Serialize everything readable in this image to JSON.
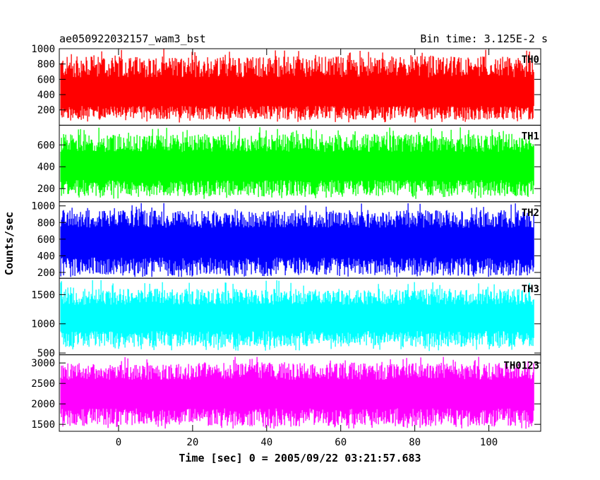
{
  "header": {
    "title": "ae050922032157_wam3_bst",
    "bin_time": "Bin time: 3.125E-2 s"
  },
  "chart_data": {
    "type": "line",
    "xlabel": "Time [sec] 0 = 2005/09/22 03:21:57.683",
    "ylabel": "Counts/sec",
    "xlim": [
      -16,
      114
    ],
    "x_ticks": [
      0,
      20,
      40,
      60,
      80,
      100
    ],
    "x_range_data": [
      -15.6,
      112.3
    ],
    "grid": false,
    "panels": [
      {
        "name": "TH0",
        "color": "#ff0000",
        "ylim": [
          0,
          1000
        ],
        "y_ticks": [
          200,
          400,
          600,
          800,
          1000
        ],
        "baseline": 400,
        "low": 70,
        "high": 900,
        "peak": 1000
      },
      {
        "name": "TH1",
        "color": "#00ff00",
        "ylim": [
          80,
          780
        ],
        "y_ticks": [
          200,
          400,
          600
        ],
        "baseline": 400,
        "low": 130,
        "high": 700,
        "peak": 770
      },
      {
        "name": "TH2",
        "color": "#0000ff",
        "ylim": [
          130,
          1050
        ],
        "y_ticks": [
          200,
          400,
          600,
          800,
          1000
        ],
        "baseline": 560,
        "low": 160,
        "high": 950,
        "peak": 1040
      },
      {
        "name": "TH3",
        "color": "#00ffff",
        "ylim": [
          470,
          1780
        ],
        "y_ticks": [
          500,
          1000,
          1500
        ],
        "baseline": 1100,
        "low": 600,
        "high": 1600,
        "peak": 1750
      },
      {
        "name": "TH0123",
        "color": "#ff00ff",
        "ylim": [
          1330,
          3200
        ],
        "y_ticks": [
          1500,
          2000,
          2500,
          3000
        ],
        "baseline": 2250,
        "low": 1450,
        "high": 3000,
        "peak": 3150
      }
    ]
  }
}
